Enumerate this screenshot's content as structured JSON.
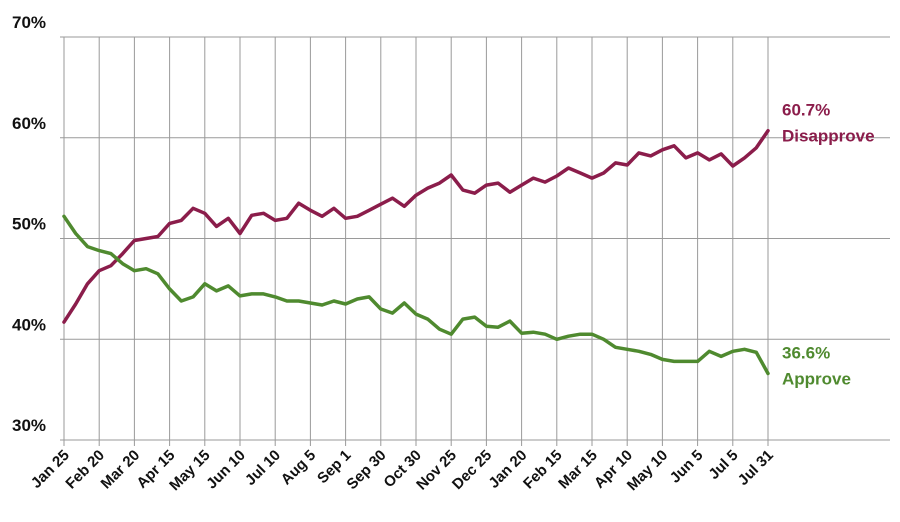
{
  "chart_data": {
    "type": "line",
    "categories": [
      "Jan 25",
      null,
      null,
      "Feb 20",
      null,
      null,
      "Mar 20",
      null,
      null,
      "Apr 15",
      null,
      null,
      "May 15",
      null,
      null,
      "Jun 10",
      null,
      null,
      "Jul 10",
      null,
      null,
      "Aug 5",
      null,
      null,
      "Sep 1",
      null,
      null,
      "Sep 30",
      null,
      null,
      "Oct 30",
      null,
      null,
      "Nov 25",
      null,
      null,
      "Dec 25",
      null,
      null,
      "Jan 20",
      null,
      null,
      "Feb 15",
      null,
      null,
      "Mar 15",
      null,
      null,
      "Apr 10",
      null,
      null,
      "May 10",
      null,
      null,
      "Jun 5",
      null,
      null,
      "Jul 5",
      null,
      null,
      "Jul 31"
    ],
    "series": [
      {
        "name": "Disapprove",
        "color": "#8b1d4b",
        "values": [
          41.7,
          43.5,
          45.5,
          46.8,
          47.3,
          48.5,
          49.8,
          50,
          50.2,
          51.5,
          51.8,
          53,
          52.5,
          51.2,
          52,
          50.5,
          52.3,
          52.5,
          51.8,
          52,
          53.5,
          52.8,
          52.2,
          53,
          52,
          52.2,
          52.8,
          53.4,
          54,
          53.2,
          54.3,
          55,
          55.5,
          56.3,
          54.8,
          54.5,
          55.3,
          55.5,
          54.6,
          55.3,
          56,
          55.6,
          56.2,
          57,
          56.5,
          56,
          56.5,
          57.5,
          57.3,
          58.5,
          58.2,
          58.8,
          59.2,
          58,
          58.5,
          57.8,
          58.4,
          57.2,
          58,
          59,
          60.7
        ],
        "value_labels": [
          null,
          null,
          null,
          null,
          null,
          null,
          null,
          null,
          null,
          null,
          null,
          null,
          null,
          null,
          null,
          null,
          null,
          null,
          null,
          null,
          null,
          null,
          null,
          null,
          null,
          null,
          null,
          null,
          null,
          null,
          null,
          null,
          null,
          null,
          null,
          null,
          null,
          null,
          null,
          null,
          null,
          null,
          null,
          null,
          null,
          null,
          null,
          null,
          null,
          null,
          null,
          null,
          null,
          null,
          null,
          null,
          null,
          null,
          null,
          null,
          "60.7%"
        ]
      },
      {
        "name": "Approve",
        "color": "#4f8a2f",
        "values": [
          52.2,
          50.5,
          49.2,
          48.8,
          48.5,
          47.5,
          46.8,
          47,
          46.5,
          45,
          43.8,
          44.2,
          45.5,
          44.8,
          45.3,
          44.3,
          44.5,
          44.5,
          44.2,
          43.8,
          43.8,
          43.6,
          43.4,
          43.8,
          43.5,
          44,
          44.2,
          43,
          42.6,
          43.6,
          42.5,
          42,
          41,
          40.5,
          42,
          42.2,
          41.3,
          41.2,
          41.8,
          40.6,
          40.7,
          40.5,
          40,
          40.3,
          40.5,
          40.5,
          40,
          39.2,
          39,
          38.8,
          38.5,
          38,
          37.8,
          37.8,
          37.8,
          38.8,
          38.3,
          38.8,
          39,
          38.7,
          36.6
        ],
        "value_labels": [
          null,
          null,
          null,
          null,
          null,
          null,
          null,
          null,
          null,
          null,
          null,
          null,
          null,
          null,
          null,
          null,
          null,
          null,
          null,
          null,
          null,
          null,
          null,
          null,
          null,
          null,
          null,
          null,
          null,
          null,
          null,
          null,
          null,
          null,
          null,
          null,
          null,
          null,
          null,
          null,
          null,
          null,
          null,
          null,
          null,
          null,
          null,
          null,
          null,
          null,
          null,
          null,
          null,
          null,
          null,
          null,
          null,
          null,
          null,
          null,
          "36.6%"
        ]
      }
    ],
    "ylim": [
      30,
      70
    ],
    "yticks": [
      {
        "value": 30,
        "label": "30%"
      },
      {
        "value": 40,
        "label": "40%"
      },
      {
        "value": 50,
        "label": "50%"
      },
      {
        "value": 60,
        "label": "60%"
      },
      {
        "value": 70,
        "label": "70%"
      }
    ],
    "grid": true
  }
}
